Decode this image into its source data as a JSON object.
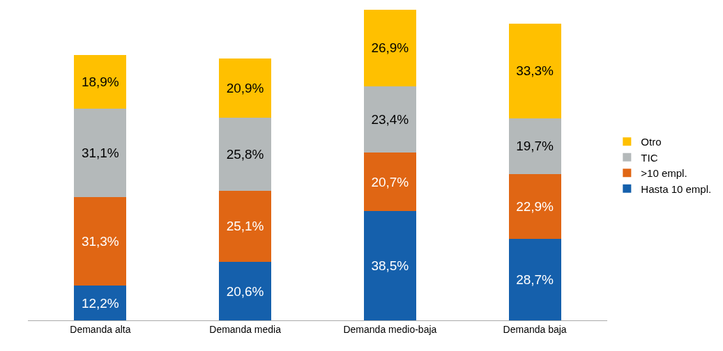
{
  "chart_data": {
    "type": "bar",
    "stacked": true,
    "legend": "right",
    "categories": [
      "Demanda alta",
      "Demanda media",
      "Demanda medio-baja",
      "Demanda baja"
    ],
    "series": [
      {
        "name": "Hasta 10 empl.",
        "color": "#1560ac",
        "values": [
          12.2,
          20.6,
          38.5,
          28.7
        ],
        "value_labels": [
          "12,2%",
          "20,6%",
          "38,5%",
          "28,7%"
        ]
      },
      {
        "name": ">10 empl.",
        "color": "#e06614",
        "values": [
          31.3,
          25.1,
          20.7,
          22.9
        ],
        "value_labels": [
          "31,3%",
          "25,1%",
          "20,7%",
          "22,9%"
        ]
      },
      {
        "name": "TIC",
        "color": "#b4b9ba",
        "values": [
          31.1,
          25.8,
          23.4,
          19.7
        ],
        "value_labels": [
          "31,1%",
          "25,8%",
          "23,4%",
          "19,7%"
        ]
      },
      {
        "name": "Otro",
        "color": "#ffc000",
        "values": [
          18.9,
          20.9,
          26.9,
          33.3
        ],
        "value_labels": [
          "18,9%",
          "20,9%",
          "26,9%",
          "33,3%"
        ]
      }
    ]
  }
}
